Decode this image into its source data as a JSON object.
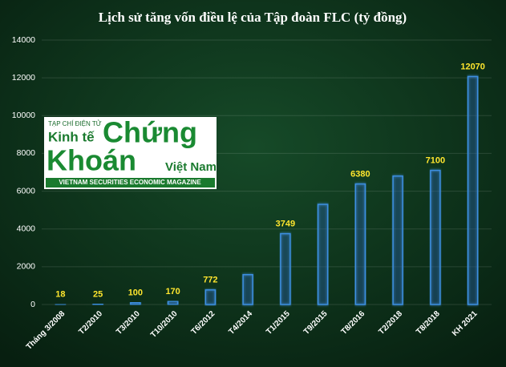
{
  "chart_data": {
    "type": "bar",
    "title": "Lịch sử tăng vốn điều lệ của Tập đoàn FLC (tỷ đồng)",
    "categories": [
      "Tháng 3/2008",
      "T2/2010",
      "T3/2010",
      "T10/2010",
      "T6/2012",
      "T4/2014",
      "T1/2015",
      "T9/2015",
      "T8/2016",
      "T2/2018",
      "T8/2018",
      "KH 2021"
    ],
    "values": [
      18,
      25,
      100,
      170,
      772,
      1580,
      3749,
      5300,
      6380,
      6800,
      7100,
      12070
    ],
    "value_labels": [
      "18",
      "25",
      "100",
      "170",
      "772",
      null,
      "3749",
      null,
      "6380",
      null,
      "7100",
      "12070"
    ],
    "color": "#3d8fe0",
    "ylim": [
      0,
      14000
    ],
    "yticks": [
      0,
      2000,
      4000,
      6000,
      8000,
      10000,
      12000,
      14000
    ],
    "grid": true
  },
  "logo": {
    "kicker": "TẠP CHÍ ĐIỆN TỬ",
    "line1": "Kinh tế",
    "word1": "Chứng",
    "word2": "Khoán",
    "line2": "Việt Nam",
    "tagline": "VIETNAM SECURITIES ECONOMIC MAGAZINE"
  }
}
